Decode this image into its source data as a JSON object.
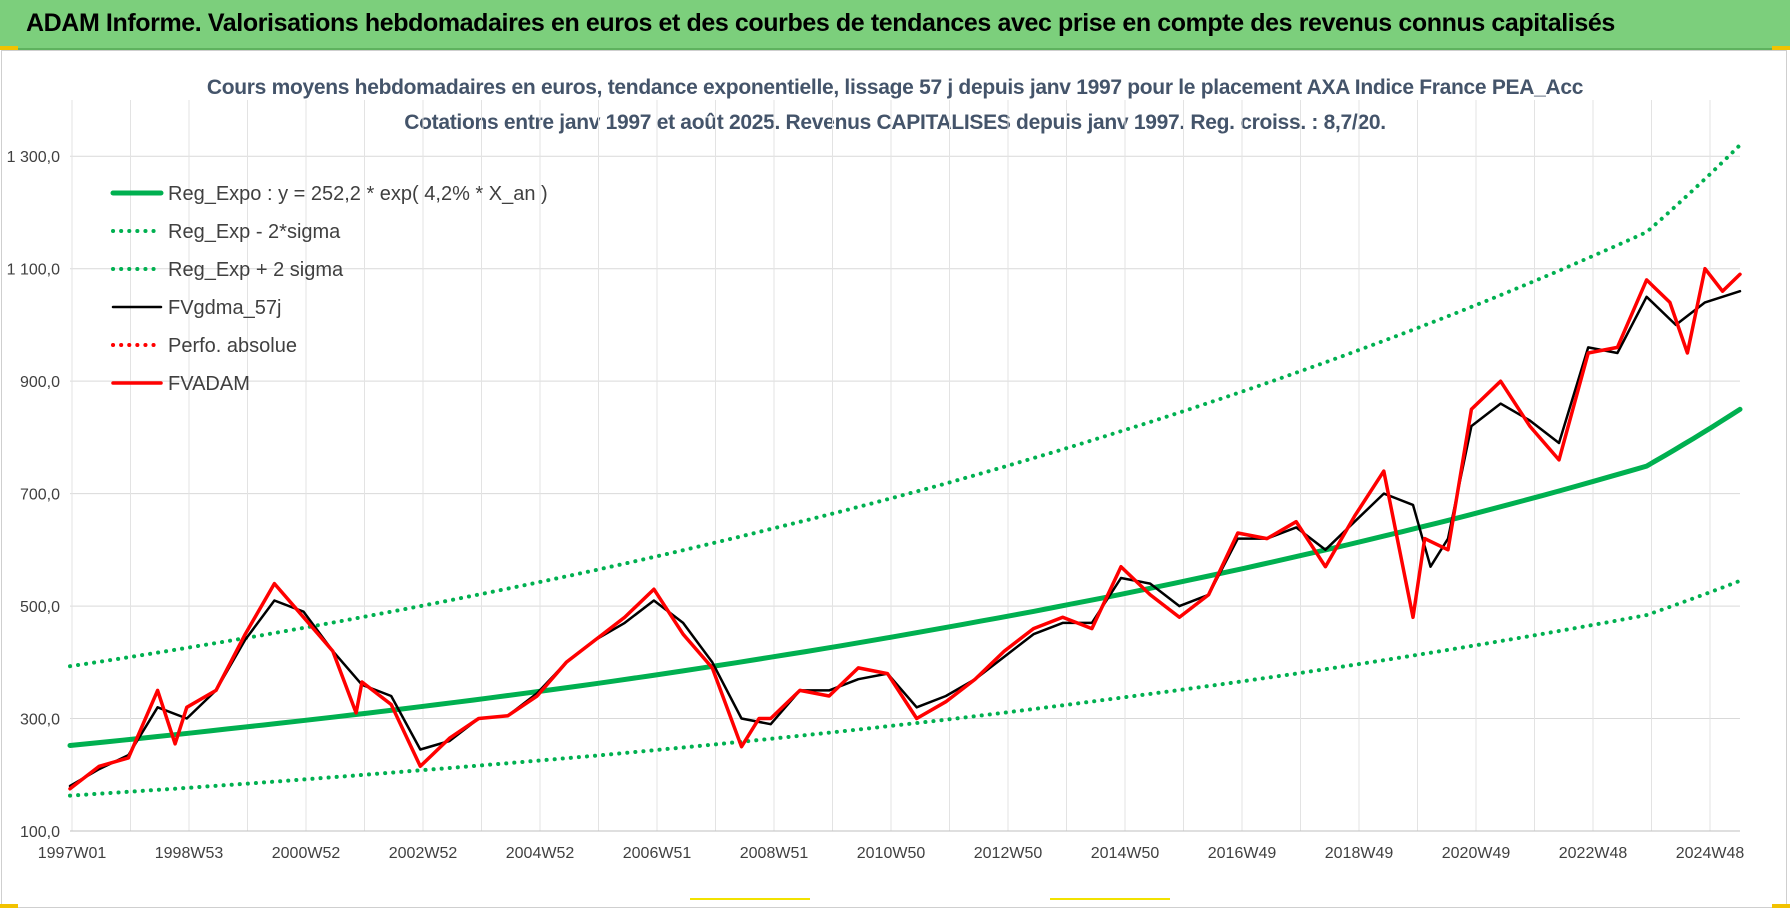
{
  "header": {
    "title": "ADAM Informe. Valorisations hebdomadaires en euros et des courbes de tendances avec prise en compte des revenus connus capitalisés"
  },
  "colors": {
    "banner": "#7ccf7c",
    "trend": "#00b050",
    "smooth": "#000000",
    "fvadam": "#ff0000",
    "title_text": "#44546a",
    "corner_accent": "#f2c200"
  },
  "chart_data": {
    "type": "line",
    "title": "Cours moyens hebdomadaires en euros, tendance exponentielle, lissage 57 j depuis janv 1997 pour le placement AXA Indice France PEA_Acc",
    "subtitle": "Cotations entre janv 1997 et août 2025.  Revenus CAPITALISES depuis janv 1997. Reg. croiss. : 8,7/20.",
    "xlabel": "",
    "ylabel": "",
    "x_ticks": [
      "1997W01",
      "1998W53",
      "2000W52",
      "2002W52",
      "2004W52",
      "2006W51",
      "2008W51",
      "2010W50",
      "2012W50",
      "2014W50",
      "2016W49",
      "2018W49",
      "2020W49",
      "2022W48",
      "2024W48"
    ],
    "y_ticks": [
      "100,0",
      "300,0",
      "500,0",
      "700,0",
      "900,0",
      "1 100,0",
      "1 300,0"
    ],
    "ylim": [
      100,
      1400
    ],
    "xlim": [
      1997.0,
      2025.6
    ],
    "grid": true,
    "legend_position": "top-left",
    "series": [
      {
        "name": "Reg_Expo : y = 252,2 * exp( 4,2% *  X_an )",
        "style": "solid-thick",
        "color": "#00b050",
        "x": [
          1997.0,
          2000.0,
          2003.0,
          2006.0,
          2009.0,
          2012.0,
          2015.0,
          2018.0,
          2021.0,
          2024.0,
          2025.6
        ],
        "y": [
          252,
          285,
          321,
          362,
          409,
          462,
          521,
          588,
          663,
          749,
          850
        ]
      },
      {
        "name": "Reg_Exp - 2*sigma",
        "style": "dotted",
        "color": "#00b050",
        "x": [
          1997.0,
          2000.0,
          2003.0,
          2006.0,
          2009.0,
          2012.0,
          2015.0,
          2018.0,
          2021.0,
          2024.0,
          2025.6
        ],
        "y": [
          163,
          184,
          208,
          234,
          264,
          298,
          337,
          380,
          429,
          484,
          545
        ]
      },
      {
        "name": "Reg_Exp + 2 sigma",
        "style": "dotted",
        "color": "#00b050",
        "x": [
          1997.0,
          2000.0,
          2003.0,
          2006.0,
          2009.0,
          2012.0,
          2015.0,
          2018.0,
          2021.0,
          2024.0,
          2025.6
        ],
        "y": [
          393,
          443,
          500,
          564,
          637,
          718,
          811,
          915,
          1032,
          1165,
          1320
        ]
      },
      {
        "name": "FVgdma_57j",
        "style": "solid",
        "color": "#000000",
        "x": [
          1997.0,
          1997.5,
          1998.0,
          1998.5,
          1999.0,
          1999.5,
          2000.0,
          2000.5,
          2001.0,
          2001.5,
          2002.0,
          2002.5,
          2003.0,
          2003.5,
          2004.0,
          2004.5,
          2005.0,
          2005.5,
          2006.0,
          2006.5,
          2007.0,
          2007.5,
          2008.0,
          2008.5,
          2009.0,
          2009.5,
          2010.0,
          2010.5,
          2011.0,
          2011.5,
          2012.0,
          2012.5,
          2013.0,
          2013.5,
          2014.0,
          2014.5,
          2015.0,
          2015.5,
          2016.0,
          2016.5,
          2017.0,
          2017.5,
          2018.0,
          2018.5,
          2019.0,
          2019.5,
          2020.0,
          2020.3,
          2020.6,
          2021.0,
          2021.5,
          2022.0,
          2022.5,
          2023.0,
          2023.5,
          2024.0,
          2024.5,
          2025.0,
          2025.6
        ],
        "y": [
          180,
          210,
          235,
          320,
          300,
          350,
          440,
          510,
          490,
          420,
          360,
          340,
          245,
          260,
          300,
          305,
          345,
          400,
          440,
          470,
          510,
          470,
          400,
          300,
          290,
          350,
          350,
          370,
          380,
          320,
          340,
          370,
          410,
          450,
          470,
          470,
          550,
          540,
          500,
          520,
          620,
          620,
          640,
          600,
          650,
          700,
          680,
          570,
          620,
          820,
          860,
          830,
          790,
          960,
          950,
          1050,
          1000,
          1040,
          1060
        ]
      },
      {
        "name": "Perfo. absolue",
        "style": "dotted",
        "color": "#ff0000",
        "x": [],
        "y": []
      },
      {
        "name": "FVADAM",
        "style": "solid-thick",
        "color": "#ff0000",
        "x": [
          1997.0,
          1997.5,
          1998.0,
          1998.5,
          1998.8,
          1999.0,
          1999.5,
          2000.0,
          2000.5,
          2001.0,
          2001.5,
          2001.9,
          2002.0,
          2002.5,
          2003.0,
          2003.5,
          2004.0,
          2004.5,
          2005.0,
          2005.5,
          2006.0,
          2006.5,
          2007.0,
          2007.5,
          2008.0,
          2008.5,
          2008.8,
          2009.0,
          2009.5,
          2010.0,
          2010.5,
          2011.0,
          2011.5,
          2012.0,
          2012.5,
          2013.0,
          2013.5,
          2014.0,
          2014.5,
          2015.0,
          2015.5,
          2016.0,
          2016.5,
          2017.0,
          2017.5,
          2018.0,
          2018.5,
          2019.0,
          2019.5,
          2020.0,
          2020.2,
          2020.6,
          2021.0,
          2021.5,
          2022.0,
          2022.5,
          2023.0,
          2023.5,
          2024.0,
          2024.4,
          2024.7,
          2025.0,
          2025.3,
          2025.6
        ],
        "y": [
          175,
          215,
          230,
          350,
          255,
          320,
          350,
          450,
          540,
          480,
          420,
          310,
          365,
          325,
          215,
          265,
          300,
          305,
          340,
          400,
          440,
          480,
          530,
          450,
          390,
          250,
          300,
          300,
          350,
          340,
          390,
          380,
          300,
          330,
          370,
          420,
          460,
          480,
          460,
          570,
          520,
          480,
          520,
          630,
          620,
          650,
          570,
          660,
          740,
          480,
          620,
          600,
          850,
          900,
          820,
          760,
          950,
          960,
          1080,
          1040,
          950,
          1100,
          1060,
          1090
        ]
      }
    ]
  }
}
